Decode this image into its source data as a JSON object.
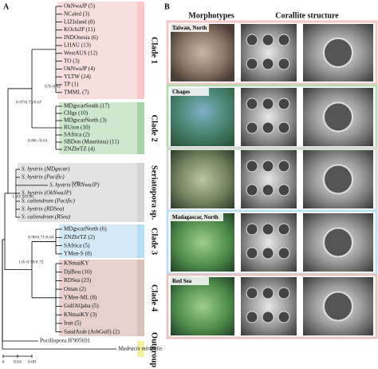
{
  "panel_a": {
    "label": "A",
    "clades": [
      {
        "name": "Clade 1",
        "leaves": [
          "OkNwaJP (5)",
          "NCaled (3)",
          "LIZIsland (8)",
          "KOchiJP (11)",
          "INDOnesia (6)",
          "LHAU (13)",
          "WestAUS (12)",
          "TO (3)",
          "OkNwaJP (4)",
          "YLTW (24)",
          "TP (1)",
          "TMML (7)"
        ]
      },
      {
        "name": "Clade 2",
        "leaves": [
          "MDgscarSouth (17)",
          "CHgs (10)",
          "MDgscarNorth (3)",
          "RUion (10)",
          "SAfrica (2)",
          "SBDon (Mauritius) (11)",
          "ZNZbrTZ (4)"
        ]
      },
      {
        "name": "Seriatopora sp.",
        "leaves": [
          "S. hystrix (MDgscar)",
          "S. hystrix (Pacific)",
          "S. hystrix (OkNwaJP)",
          "S. hystrix (OkNwaJP)",
          "S. caliendrum (Pacific)",
          "S. hystrix (RDSea)",
          "S. caliendrum (RSea)"
        ]
      },
      {
        "name": "Clade 3",
        "leaves": [
          "MDgscarNorth (6)",
          "ZNZbrTZ (2)",
          "SAfrica (5)",
          "YMen-S (8)"
        ]
      },
      {
        "name": "Clade 4",
        "leaves": [
          "KNmaiKY",
          "DjiBou (10)",
          "RDSea (23)",
          "Oman (2)",
          "YMen-ML (8)",
          "GulfAQaba (5)",
          "KNmaiKY (3)",
          "Iran (5)",
          "SaudArab (ArbGulf) (2)"
        ]
      }
    ],
    "outgroup": {
      "name": "Outgroup",
      "leaves": [
        "Pocillopora JF905691",
        "Madracis mirabilis"
      ]
    },
    "supports": [
      "0.9/-0.62",
      "0.97/0.73/0.67",
      "0.88/-/0.61",
      "0.88/-",
      "1.0/1.0/0.90",
      "0.98/0.71/0.64",
      "1.0/-0.78/0.72"
    ],
    "scale": [
      "0",
      "0.04",
      "0.08"
    ]
  },
  "panel_b": {
    "label": "B",
    "headers": [
      "Morphotypes",
      "Corallite structure"
    ],
    "regions": [
      "Taiwan, North",
      "Chagos",
      "Madagascar, North",
      "Red Sea"
    ]
  }
}
